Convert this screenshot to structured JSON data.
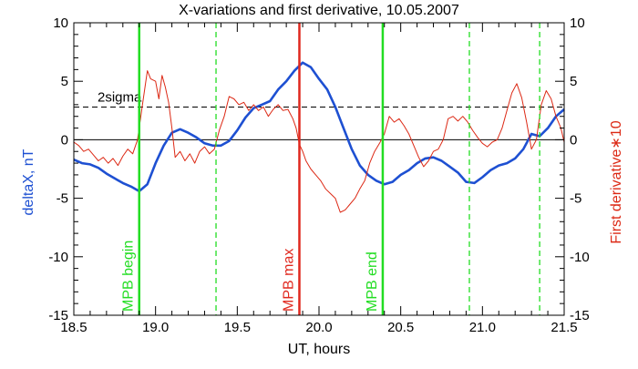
{
  "chart_data": {
    "type": "line",
    "title": "X-variations and first derivative, 10.05.2007",
    "xlabel": "UT, hours",
    "ylabel_left": "deltaX, nT",
    "ylabel_right": "First derivative∗10",
    "xlim": [
      18.5,
      21.5
    ],
    "ylim": [
      -15,
      10
    ],
    "x_ticks": [
      18.5,
      19.0,
      19.5,
      20.0,
      20.5,
      21.0,
      21.5
    ],
    "x_tick_labels": [
      "18.5",
      "19.0",
      "19.5",
      "20.0",
      "20.5",
      "21.0",
      "21.5"
    ],
    "y_ticks": [
      -15,
      -10,
      -5,
      0,
      5,
      10
    ],
    "y_tick_labels": [
      "-15",
      "-10",
      "-5",
      "0",
      "5",
      "10"
    ],
    "colors": {
      "deltaX": "#1e50d2",
      "derivative": "#dc2814",
      "mpb": "#22dd22",
      "mpb_max": "#e0281e",
      "axis": "#000000"
    },
    "reference_lines": [
      {
        "y": 0,
        "style": "solid"
      },
      {
        "y": 2.8,
        "style": "dashed",
        "label": "2sigma"
      }
    ],
    "vertical_markers": [
      {
        "x": 18.9,
        "style": "solid",
        "color": "mpb",
        "label": "MPB begin"
      },
      {
        "x": 19.37,
        "style": "dashed",
        "color": "mpb"
      },
      {
        "x": 19.88,
        "style": "solid",
        "color": "mpb_max",
        "label": "MPB max"
      },
      {
        "x": 20.39,
        "style": "solid",
        "color": "mpb",
        "label": "MPB end"
      },
      {
        "x": 20.92,
        "style": "dashed",
        "color": "mpb"
      },
      {
        "x": 21.35,
        "style": "dashed",
        "color": "mpb"
      }
    ],
    "series": [
      {
        "key": "deltaX",
        "axis": "left",
        "x": [
          18.5,
          18.55,
          18.6,
          18.65,
          18.7,
          18.75,
          18.8,
          18.85,
          18.9,
          18.95,
          19.0,
          19.05,
          19.1,
          19.15,
          19.2,
          19.25,
          19.3,
          19.35,
          19.4,
          19.45,
          19.5,
          19.55,
          19.6,
          19.65,
          19.7,
          19.75,
          19.8,
          19.85,
          19.9,
          19.95,
          20.0,
          20.05,
          20.1,
          20.15,
          20.2,
          20.25,
          20.3,
          20.35,
          20.4,
          20.45,
          20.5,
          20.55,
          20.6,
          20.65,
          20.7,
          20.75,
          20.8,
          20.85,
          20.9,
          20.95,
          21.0,
          21.05,
          21.1,
          21.15,
          21.2,
          21.25,
          21.3,
          21.35,
          21.4,
          21.45,
          21.5
        ],
        "y": [
          -1.7,
          -2.0,
          -2.1,
          -2.4,
          -2.9,
          -3.3,
          -3.7,
          -4.0,
          -4.4,
          -3.8,
          -2.0,
          -0.5,
          0.6,
          0.9,
          0.6,
          0.2,
          -0.3,
          -0.5,
          -0.5,
          -0.1,
          0.8,
          1.9,
          2.7,
          3.0,
          3.3,
          4.3,
          5.0,
          5.9,
          6.6,
          6.2,
          5.2,
          4.3,
          2.8,
          1.0,
          -0.8,
          -2.2,
          -3.0,
          -3.5,
          -3.8,
          -3.6,
          -3.0,
          -2.6,
          -2.0,
          -1.6,
          -1.5,
          -1.8,
          -2.3,
          -2.8,
          -3.6,
          -3.7,
          -3.2,
          -2.6,
          -2.2,
          -2.0,
          -1.6,
          -0.8,
          0.5,
          0.3,
          1.0,
          2.0,
          2.6
        ]
      },
      {
        "key": "derivative",
        "axis": "right",
        "x": [
          18.5,
          18.53,
          18.56,
          18.59,
          18.62,
          18.65,
          18.68,
          18.71,
          18.74,
          18.77,
          18.8,
          18.83,
          18.86,
          18.89,
          18.92,
          18.95,
          18.97,
          19.0,
          19.02,
          19.04,
          19.06,
          19.08,
          19.1,
          19.12,
          19.15,
          19.18,
          19.21,
          19.24,
          19.27,
          19.3,
          19.33,
          19.36,
          19.39,
          19.42,
          19.45,
          19.48,
          19.51,
          19.54,
          19.57,
          19.6,
          19.63,
          19.66,
          19.69,
          19.72,
          19.75,
          19.78,
          19.81,
          19.84,
          19.86,
          19.88,
          19.9,
          19.92,
          19.95,
          19.98,
          20.01,
          20.04,
          20.07,
          20.1,
          20.13,
          20.16,
          20.19,
          20.22,
          20.25,
          20.28,
          20.31,
          20.34,
          20.37,
          20.4,
          20.43,
          20.46,
          20.49,
          20.52,
          20.55,
          20.58,
          20.61,
          20.64,
          20.67,
          20.7,
          20.73,
          20.76,
          20.79,
          20.82,
          20.85,
          20.88,
          20.91,
          20.94,
          20.97,
          21.0,
          21.03,
          21.06,
          21.09,
          21.12,
          21.15,
          21.18,
          21.21,
          21.24,
          21.27,
          21.3,
          21.33,
          21.36,
          21.39,
          21.42,
          21.45,
          21.48,
          21.5
        ],
        "y": [
          -0.2,
          -0.5,
          -1.0,
          -0.8,
          -1.3,
          -1.8,
          -1.5,
          -2.0,
          -1.6,
          -2.2,
          -1.4,
          -0.8,
          -1.2,
          0.0,
          3.0,
          5.9,
          5.2,
          5.0,
          3.5,
          5.5,
          4.5,
          3.2,
          1.0,
          -1.5,
          -1.0,
          -1.8,
          -1.2,
          -2.0,
          -1.0,
          -0.6,
          -1.2,
          -0.8,
          0.8,
          2.0,
          3.7,
          3.5,
          3.0,
          3.2,
          2.5,
          3.0,
          2.5,
          2.8,
          2.0,
          2.6,
          3.0,
          2.5,
          2.6,
          1.8,
          1.0,
          -0.4,
          -1.0,
          -1.8,
          -2.5,
          -3.0,
          -3.5,
          -4.2,
          -4.6,
          -5.0,
          -6.2,
          -6.0,
          -5.5,
          -5.0,
          -4.2,
          -3.5,
          -2.0,
          -1.0,
          -0.3,
          0.5,
          2.0,
          1.5,
          1.8,
          1.2,
          0.5,
          -0.5,
          -1.5,
          -2.3,
          -1.8,
          -1.0,
          -0.8,
          0.0,
          1.8,
          2.0,
          1.6,
          2.0,
          1.5,
          0.8,
          0.2,
          -0.3,
          -0.6,
          -0.2,
          0.0,
          1.0,
          2.5,
          4.0,
          4.8,
          3.6,
          1.5,
          -0.8,
          0.0,
          3.0,
          4.2,
          3.5,
          2.0,
          1.0,
          -0.2
        ]
      }
    ]
  }
}
